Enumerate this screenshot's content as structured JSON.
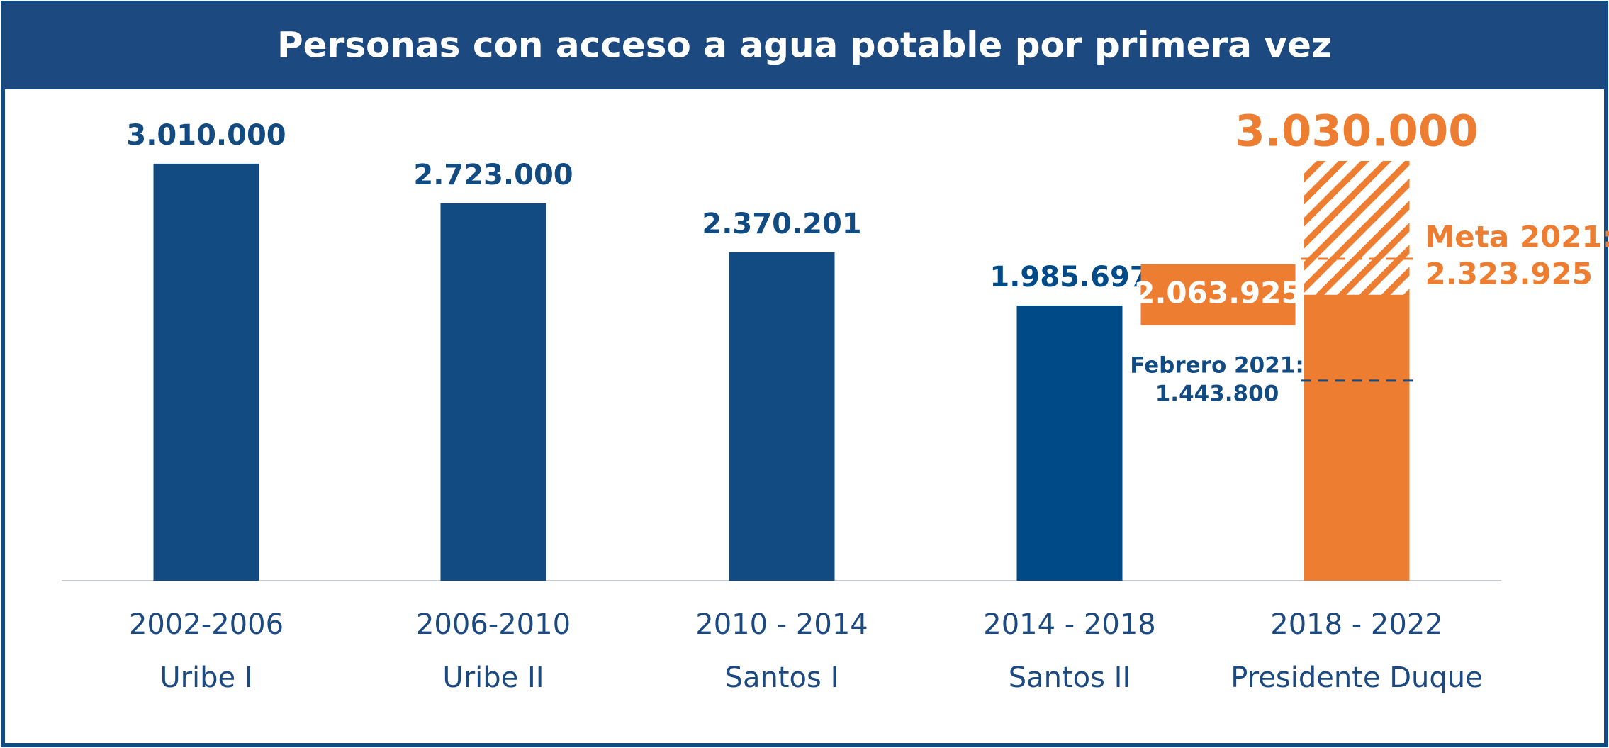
{
  "chart_data": {
    "type": "bar",
    "title": "Personas con acceso a agua potable por primera vez",
    "categories": [
      [
        "2002-2006",
        "Uribe I"
      ],
      [
        "2006-2010",
        "Uribe II"
      ],
      [
        "2010 - 2014",
        "Santos I"
      ],
      [
        "2014 - 2018",
        "Santos II"
      ],
      [
        "2018 - 2022",
        "Presidente Duque"
      ]
    ],
    "values": [
      3010000,
      2723000,
      2370201,
      1985697,
      2063925
    ],
    "value_labels": [
      "3.010.000",
      "2.723.000",
      "2.370.201",
      "1.985.697",
      "2.063.925"
    ],
    "colors": [
      "#124a82",
      "#124a82",
      "#124a82",
      "#004a87",
      "#ed7d31"
    ],
    "target": {
      "category": 4,
      "value": 3030000,
      "label": "3.030.000",
      "color": "#ed7d31"
    },
    "annotations": [
      {
        "label": "Meta 2021:",
        "value": 2323925,
        "value_label": "2.323.925",
        "color": "#ed7d31"
      },
      {
        "label": "Febrero 2021:",
        "value": 1443800,
        "value_label": "1.443.800",
        "color": "#124a82"
      }
    ]
  }
}
